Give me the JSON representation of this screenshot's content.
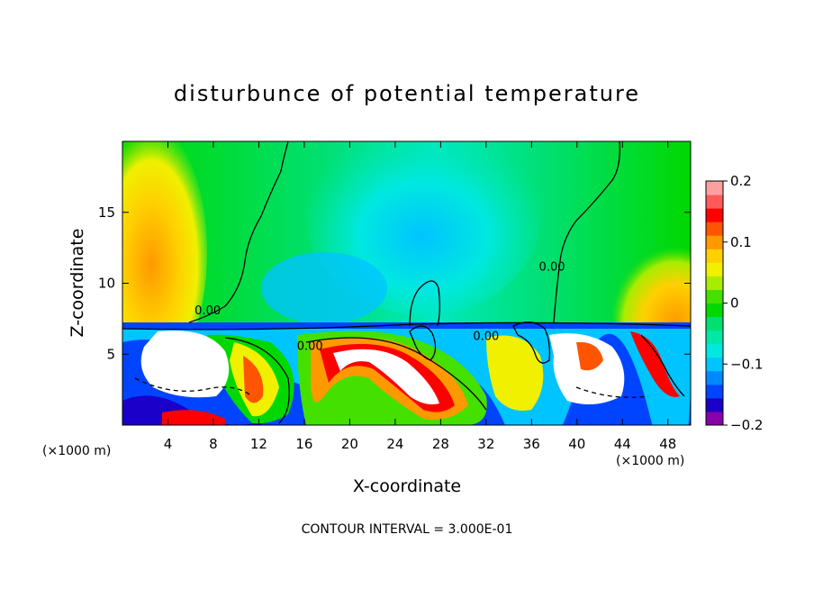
{
  "chart_data": {
    "type": "heatmap",
    "title": "disturbunce of potential temperature",
    "xlabel": "X-coordinate",
    "ylabel": "Z-coordinate",
    "x_unit_left": "(×1000 m)",
    "x_unit_right": "(×1000 m)",
    "xlim": [
      0,
      50
    ],
    "ylim": [
      0,
      20
    ],
    "x_ticks": [
      4,
      8,
      12,
      16,
      20,
      24,
      28,
      32,
      36,
      40,
      44,
      48
    ],
    "x_tick_labels": [
      "4",
      "8",
      "12",
      "16",
      "20",
      "24",
      "28",
      "32",
      "36",
      "40",
      "44",
      "48"
    ],
    "y_ticks": [
      5,
      10,
      15
    ],
    "y_tick_labels": [
      "5",
      "10",
      "15"
    ],
    "contour_interval_text": "CONTOUR INTERVAL = 3.000E-01",
    "contour_labels": [
      {
        "text": "0.00",
        "x": 7.5,
        "y": 7.8
      },
      {
        "text": "0.00",
        "x": 16.5,
        "y": 5.3
      },
      {
        "text": "0.00",
        "x": 32.0,
        "y": 6.0
      },
      {
        "text": "0.00",
        "x": 37.8,
        "y": 10.9
      }
    ],
    "colorbar": {
      "min": -0.2,
      "max": 0.2,
      "tick_values": [
        0.2,
        0.1,
        0,
        -0.1,
        -0.2
      ],
      "tick_labels": [
        "0.2",
        "0.1",
        "0",
        "−0.1",
        "−0.2"
      ],
      "colors": [
        "#8a00a8",
        "#1a00c8",
        "#0044ff",
        "#0088ff",
        "#00c4ff",
        "#00e8e0",
        "#00e8a8",
        "#00e070",
        "#00d800",
        "#44e000",
        "#a8ec00",
        "#f0f000",
        "#ffd000",
        "#ff9900",
        "#ff5500",
        "#ff0000",
        "#ff5a5a",
        "#ffa0a0"
      ]
    },
    "field_regions": [
      {
        "name": "upper-green",
        "value": 0.02
      },
      {
        "name": "upper-cyan",
        "value": -0.05
      },
      {
        "name": "upper-blue-core",
        "value": -0.09
      },
      {
        "name": "left-warm",
        "value": 0.12
      },
      {
        "name": "right-warm",
        "value": 0.1
      },
      {
        "name": "lower-turbulent",
        "value": 0.2
      }
    ]
  }
}
